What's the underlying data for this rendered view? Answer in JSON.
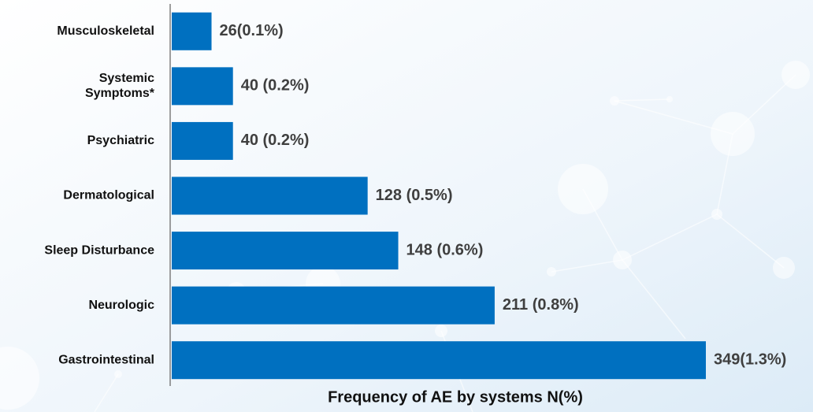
{
  "chart_data": {
    "type": "bar",
    "orientation": "horizontal",
    "x_label": "Frequency of AE by systems N(%)",
    "categories": [
      "Musculoskeletal",
      "Systemic\nSymptoms*",
      "Psychiatric",
      "Dermatological",
      "Sleep Disturbance",
      "Neurologic",
      "Gastrointestinal"
    ],
    "values": [
      26,
      40,
      40,
      128,
      148,
      211,
      349
    ],
    "value_labels": [
      "26(0.1%)",
      "40 (0.2%)",
      "40 (0.2%)",
      "128 (0.5%)",
      "148 (0.6%)",
      "211 (0.8%)",
      "349(1.3%)"
    ],
    "color": "#0070c0"
  }
}
